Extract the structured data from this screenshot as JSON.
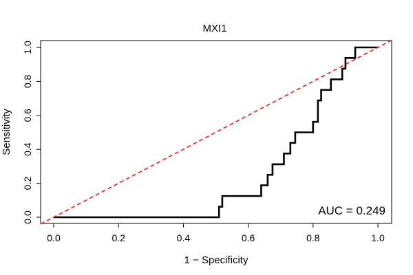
{
  "chart_data": {
    "type": "line",
    "title": "MXI1",
    "xlabel": "1 − Specificity",
    "ylabel": "Sensitivity",
    "xlim": [
      0.0,
      1.0
    ],
    "ylim": [
      0.0,
      1.0
    ],
    "x_ticks": [
      "0.0",
      "0.2",
      "0.4",
      "0.6",
      "0.8",
      "1.0"
    ],
    "y_ticks": [
      "0.0",
      "0.2",
      "0.4",
      "0.6",
      "0.8",
      "1.0"
    ],
    "grid": false,
    "annotation": "AUC = 0.249",
    "annotation_position": "bottom-right",
    "series": [
      {
        "style": "solid",
        "color": "#000000",
        "x": [
          0.0,
          0.51,
          0.51,
          0.52,
          0.52,
          0.64,
          0.64,
          0.66,
          0.66,
          0.675,
          0.675,
          0.71,
          0.71,
          0.73,
          0.73,
          0.745,
          0.745,
          0.8,
          0.8,
          0.815,
          0.815,
          0.825,
          0.825,
          0.83,
          0.83,
          0.855,
          0.855,
          0.89,
          0.89,
          0.9,
          0.9,
          0.93,
          0.93,
          1.0
        ],
        "y": [
          0.0,
          0.0,
          0.062,
          0.062,
          0.125,
          0.125,
          0.188,
          0.188,
          0.25,
          0.25,
          0.312,
          0.312,
          0.375,
          0.375,
          0.438,
          0.438,
          0.5,
          0.5,
          0.562,
          0.562,
          0.688,
          0.688,
          0.75,
          0.75,
          0.75,
          0.75,
          0.812,
          0.812,
          0.875,
          0.875,
          0.938,
          0.938,
          1.0,
          1.0
        ]
      },
      {
        "style": "dashed",
        "color": "#e41a1c",
        "x": [
          -0.04,
          1.04
        ],
        "y": [
          -0.04,
          1.04
        ]
      }
    ]
  }
}
